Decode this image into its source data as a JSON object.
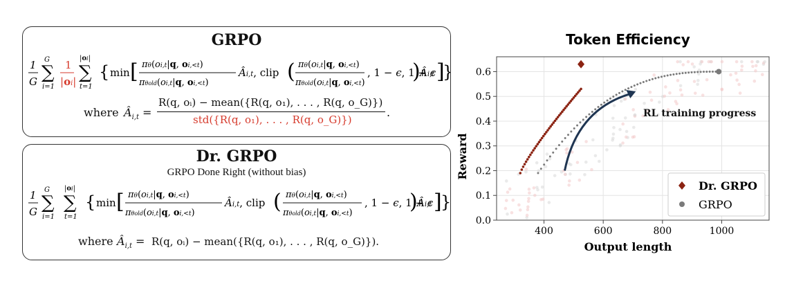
{
  "grpo_box": {
    "title": "GRPO",
    "where_label": "where",
    "advantage_numerator": "R(q, oᵢ) − mean({R(q, o₁), . . . , R(q, o_G)})",
    "advantage_denominator": "std({R(q, o₁), . . . , R(q, o_G)})",
    "highlight_color": "#d63a2c"
  },
  "drgrpo_box": {
    "title": "Dr. GRPO",
    "subtitle": "GRPO Done Right (without bias)",
    "where_label": "where",
    "advantage": "R(q, oᵢ) − mean({R(q, o₁), . . . , R(q, o_G)})."
  },
  "chart_data": {
    "type": "scatter",
    "title": "Token Efficiency",
    "xlabel": "Output length",
    "ylabel": "Reward",
    "xlim": [
      240,
      1160
    ],
    "ylim": [
      0,
      0.66
    ],
    "xticks": [
      400,
      600,
      800,
      1000
    ],
    "yticks": [
      0.0,
      0.1,
      0.2,
      0.3,
      0.4,
      0.5,
      0.6
    ],
    "grid": true,
    "legend_position": "bottom-right",
    "annotation": "RL training progress",
    "series": [
      {
        "name": "Dr. GRPO",
        "color": "#8b2312",
        "final_point": [
          525,
          0.63
        ],
        "trajectory_start": [
          320,
          0.19
        ],
        "trajectory_end": [
          525,
          0.53
        ]
      },
      {
        "name": "GRPO",
        "color": "#7a7a7a",
        "final_point": [
          990,
          0.6
        ],
        "trajectory_start": [
          380,
          0.19
        ],
        "trajectory_end": [
          990,
          0.6
        ]
      }
    ]
  }
}
